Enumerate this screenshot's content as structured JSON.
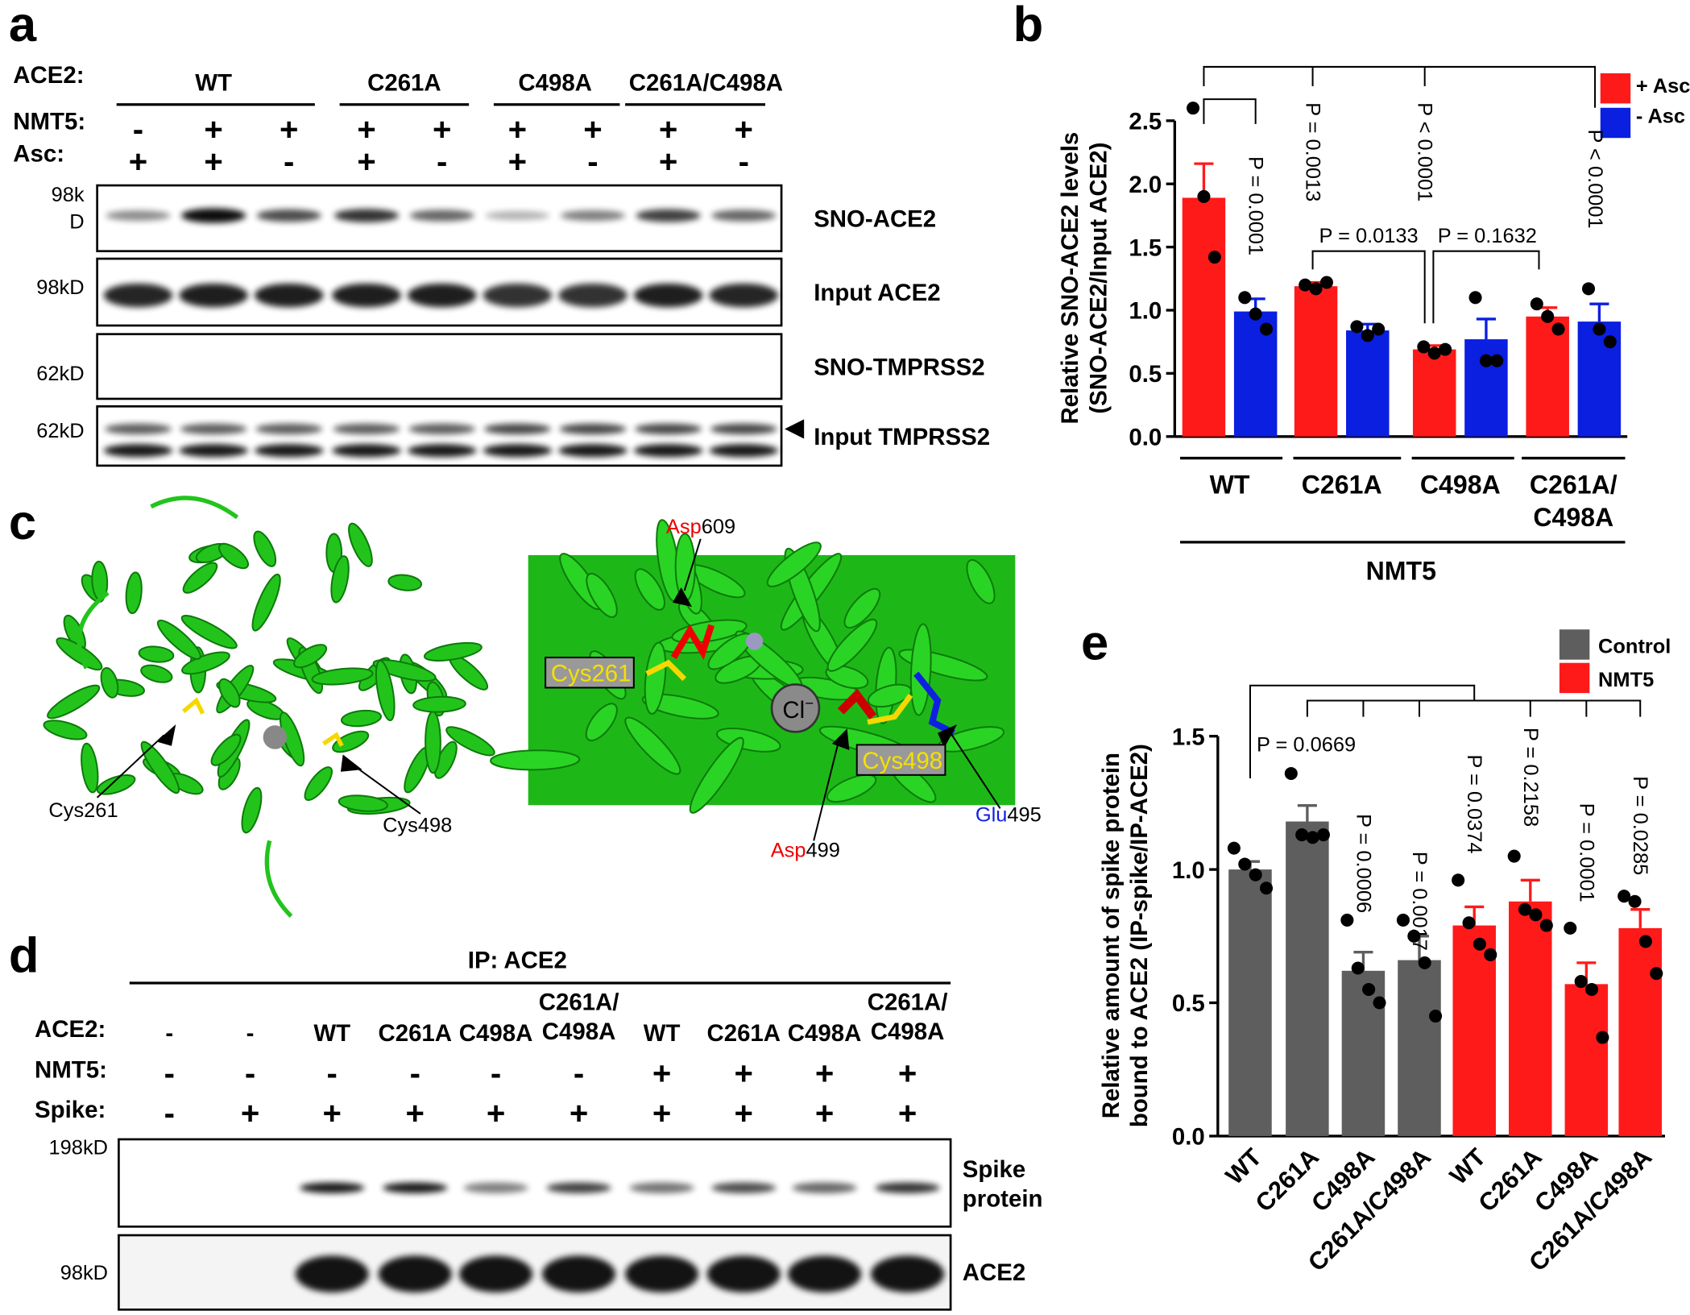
{
  "panel_labels": [
    "a",
    "b",
    "c",
    "d",
    "e"
  ],
  "panel_a": {
    "row_labels": [
      "ACE2:",
      "NMT5:",
      "Asc:"
    ],
    "groups": [
      "WT",
      "C261A",
      "C498A",
      "C261A/C498A"
    ],
    "nmt5": [
      "-",
      "+",
      "+",
      "+",
      "+",
      "+",
      "+",
      "+",
      "+"
    ],
    "asc": [
      "+",
      "+",
      "-",
      "+",
      "-",
      "+",
      "-",
      "+",
      "-"
    ],
    "markers": [
      "98k",
      "D",
      "98kD",
      "62kD",
      "62kD"
    ],
    "blots": [
      "SNO-ACE2",
      "Input ACE2",
      "SNO-TMPRSS2",
      "Input TMPRSS2"
    ]
  },
  "panel_c": {
    "left_labels": [
      "Cys261",
      "Cys498"
    ],
    "cys261": "Cys261",
    "cys498": "Cys498",
    "chloride": "Cl",
    "chloride_charge": "−",
    "asp609": [
      "Asp",
      "609"
    ],
    "glu495": [
      "Glu",
      "495"
    ],
    "asp499": [
      "Asp",
      "499"
    ]
  },
  "panel_d": {
    "title": "IP: ACE2",
    "row_labels": [
      "ACE2:",
      "NMT5:",
      "Spike:"
    ],
    "ace2": [
      "-",
      "-",
      "WT",
      "C261A",
      "C498A",
      "C261A/\nC498A",
      "WT",
      "C261A",
      "C498A",
      "C261A/\nC498A"
    ],
    "nmt5": [
      "-",
      "-",
      "-",
      "-",
      "-",
      "-",
      "+",
      "+",
      "+",
      "+"
    ],
    "spike": [
      "-",
      "+",
      "+",
      "+",
      "+",
      "+",
      "+",
      "+",
      "+",
      "+"
    ],
    "markers": [
      "198kD",
      "98kD"
    ],
    "blots": [
      "Spike\nprotein",
      "ACE2"
    ]
  },
  "chart_data": [
    {
      "type": "bar",
      "ylabel": [
        "Relative SNO-ACE2 levels",
        "(SNO-ACE2/Input ACE2)"
      ],
      "categories": [
        "WT",
        "C261A",
        "C498A",
        "C261A/\nC498A"
      ],
      "group_label": "NMT5",
      "series": [
        {
          "name": "+ Asc",
          "color": "#ff1a1a",
          "values": [
            1.89,
            1.19,
            0.69,
            0.95
          ],
          "errors": [
            0.27,
            0.03,
            0.03,
            0.07
          ],
          "points": [
            [
              2.6,
              1.9,
              1.42
            ],
            [
              1.2,
              1.17,
              1.22
            ],
            [
              0.71,
              0.66,
              0.69
            ],
            [
              1.05,
              0.95,
              0.85
            ]
          ]
        },
        {
          "name": "- Asc",
          "color": "#0a1fe0",
          "values": [
            0.99,
            0.84,
            0.77,
            0.91
          ],
          "errors": [
            0.1,
            0.05,
            0.16,
            0.14
          ],
          "points": [
            [
              1.1,
              0.97,
              0.85
            ],
            [
              0.87,
              0.8,
              0.85
            ],
            [
              1.1,
              0.6,
              0.6
            ],
            [
              1.17,
              0.85,
              0.75
            ]
          ]
        }
      ],
      "ylim": [
        0,
        2.5
      ],
      "yticks": [
        {
          "value": 0,
          "label": "0.0"
        },
        0.5,
        {
          "value": 1,
          "label": "1.0"
        },
        1.5,
        {
          "value": 2,
          "label": "2.0"
        },
        2.5
      ],
      "annotations": [
        "P = 0.0001",
        "P = 0.0013",
        "P < 0.0001",
        "P = 0.0133",
        "P = 0.1632",
        "P < 0.0001"
      ]
    },
    {
      "type": "bar",
      "ylabel": [
        "Relative amount of spike protein",
        "bound to ACE2 (IP-spike/IP-ACE2)"
      ],
      "categories": [
        "WT",
        "C261A",
        "C498A",
        "C261A/C498A",
        "WT",
        "C261A",
        "C498A",
        "C261A/C498A"
      ],
      "series": [
        {
          "name": "Control",
          "color": "#5e5e5e",
          "values": [
            1.0,
            1.18,
            0.62,
            0.66,
            null,
            null,
            null,
            null
          ],
          "errors": [
            0.03,
            0.06,
            0.07,
            0.09,
            null,
            null,
            null,
            null
          ],
          "points": [
            [
              1.08,
              1.02,
              0.98,
              0.93
            ],
            [
              1.36,
              1.13,
              1.12,
              1.13
            ],
            [
              0.81,
              0.63,
              0.55,
              0.5
            ],
            [
              0.81,
              0.75,
              0.65,
              0.45
            ],
            null,
            null,
            null,
            null
          ]
        },
        {
          "name": "NMT5",
          "color": "#ff1a1a",
          "values": [
            null,
            null,
            null,
            null,
            0.79,
            0.88,
            0.57,
            0.78
          ],
          "errors": [
            null,
            null,
            null,
            null,
            0.07,
            0.08,
            0.08,
            0.07
          ],
          "points": [
            null,
            null,
            null,
            null,
            [
              0.96,
              0.8,
              0.72,
              0.68
            ],
            [
              1.05,
              0.85,
              0.83,
              0.79
            ],
            [
              0.78,
              0.58,
              0.55,
              0.37
            ],
            [
              0.9,
              0.88,
              0.73,
              0.61
            ]
          ]
        }
      ],
      "ylim": [
        0,
        1.5
      ],
      "yticks": [
        {
          "value": 0,
          "label": "0.0"
        },
        0.5,
        {
          "value": 1,
          "label": "1.0"
        },
        1.5
      ],
      "annotations": [
        "P = 0.0669",
        "P = 0.0006",
        "P = 0.0017",
        "P = 0.0374",
        "P = 0.2158",
        "P = 0.0001",
        "P = 0.0285"
      ]
    }
  ]
}
